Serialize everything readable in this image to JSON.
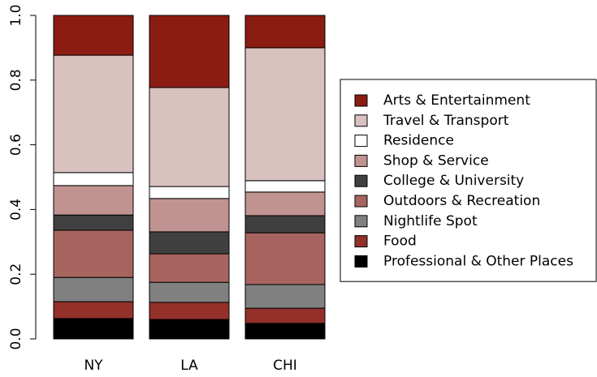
{
  "chart_data": {
    "type": "stacked-bar",
    "categories": [
      "NY",
      "LA",
      "CHI"
    ],
    "series": [
      {
        "name": "Professional & Other Places",
        "color": "#000000",
        "values": [
          0.063,
          0.06,
          0.048
        ]
      },
      {
        "name": "Food",
        "color": "#93302a",
        "values": [
          0.052,
          0.053,
          0.047
        ]
      },
      {
        "name": "Nightlife Spot",
        "color": "#808080",
        "values": [
          0.075,
          0.062,
          0.073
        ]
      },
      {
        "name": "Outdoors & Recreation",
        "color": "#a8645f",
        "values": [
          0.146,
          0.088,
          0.16
        ]
      },
      {
        "name": "College & University",
        "color": "#404040",
        "values": [
          0.047,
          0.068,
          0.053
        ]
      },
      {
        "name": "Shop & Service",
        "color": "#c09391",
        "values": [
          0.091,
          0.103,
          0.073
        ]
      },
      {
        "name": "Residence",
        "color": "#ffffff",
        "values": [
          0.04,
          0.037,
          0.035
        ]
      },
      {
        "name": "Travel & Transport",
        "color": "#d9c1bf",
        "values": [
          0.363,
          0.306,
          0.411
        ]
      },
      {
        "name": "Arts & Entertainment",
        "color": "#8b1c12",
        "values": [
          0.123,
          0.223,
          0.1
        ]
      }
    ],
    "ylim": [
      0,
      1
    ],
    "yticks": [
      {
        "value": 0,
        "label": "0.0"
      },
      0.2,
      0.4,
      0.6,
      0.8,
      {
        "value": 1,
        "label": "1.0"
      }
    ],
    "legend": "right"
  }
}
